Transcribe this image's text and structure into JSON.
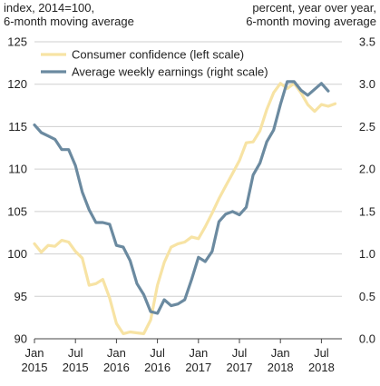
{
  "chart_data": {
    "type": "line",
    "left_axis_note": [
      "index, 2014=100,",
      "6-month moving average"
    ],
    "right_axis_note": [
      "percent, year over year,",
      "6-month moving average"
    ],
    "x_ticks": [
      {
        "month": "Jan",
        "year": "2015",
        "t": 0
      },
      {
        "month": "Jul",
        "year": "2015",
        "t": 6
      },
      {
        "month": "Jan",
        "year": "2016",
        "t": 12
      },
      {
        "month": "Jul",
        "year": "2016",
        "t": 18
      },
      {
        "month": "Jan",
        "year": "2017",
        "t": 24
      },
      {
        "month": "Jul",
        "year": "2017",
        "t": 30
      },
      {
        "month": "Jan",
        "year": "2018",
        "t": 36
      },
      {
        "month": "Jul",
        "year": "2018",
        "t": 42
      }
    ],
    "x_range": [
      0,
      45
    ],
    "y_left": {
      "ticks": [
        "90",
        "95",
        "100",
        "105",
        "110",
        "115",
        "120",
        "125"
      ],
      "range": [
        90,
        125
      ]
    },
    "y_right": {
      "ticks": [
        "0.0",
        "0.5",
        "1.0",
        "1.5",
        "2.0",
        "2.5",
        "3.0",
        "3.5"
      ],
      "range": [
        0,
        3.5
      ]
    },
    "grid": "horizontal",
    "legend_position": "top-left",
    "series": [
      {
        "name": "Consumer confidence (left scale)",
        "axis": "left",
        "color": "#f7e3a4",
        "x": [
          "2015-01",
          "2015-02",
          "2015-03",
          "2015-04",
          "2015-05",
          "2015-06",
          "2015-07",
          "2015-08",
          "2015-09",
          "2015-10",
          "2015-11",
          "2015-12",
          "2016-01",
          "2016-02",
          "2016-03",
          "2016-04",
          "2016-05",
          "2016-06",
          "2016-07",
          "2016-08",
          "2016-09",
          "2016-10",
          "2016-11",
          "2016-12",
          "2017-01",
          "2017-02",
          "2017-03",
          "2017-04",
          "2017-05",
          "2017-06",
          "2017-07",
          "2017-08",
          "2017-09",
          "2017-10",
          "2017-11",
          "2017-12",
          "2018-01",
          "2018-02",
          "2018-03",
          "2018-04",
          "2018-05",
          "2018-06",
          "2018-07",
          "2018-08",
          "2018-09"
        ],
        "values": [
          101.2,
          100.2,
          101.0,
          100.9,
          101.6,
          101.4,
          100.3,
          99.5,
          96.3,
          96.5,
          97.0,
          94.8,
          91.8,
          90.6,
          90.8,
          90.7,
          90.6,
          92.2,
          96.3,
          99.0,
          100.8,
          101.2,
          101.4,
          102.0,
          101.8,
          103.2,
          104.8,
          106.5,
          108.0,
          109.5,
          111.0,
          113.1,
          113.2,
          114.5,
          117.0,
          119.0,
          120.1,
          119.5,
          120.1,
          119.0,
          117.6,
          116.8,
          117.6,
          117.4,
          117.7
        ]
      },
      {
        "name": "Average weekly earnings (right scale)",
        "axis": "right",
        "color": "#6b8aa0",
        "x": [
          "2015-01",
          "2015-02",
          "2015-03",
          "2015-04",
          "2015-05",
          "2015-06",
          "2015-07",
          "2015-08",
          "2015-09",
          "2015-10",
          "2015-11",
          "2015-12",
          "2016-01",
          "2016-02",
          "2016-03",
          "2016-04",
          "2016-05",
          "2016-06",
          "2016-07",
          "2016-08",
          "2016-09",
          "2016-10",
          "2016-11",
          "2016-12",
          "2017-01",
          "2017-02",
          "2017-03",
          "2017-04",
          "2017-05",
          "2017-06",
          "2017-07",
          "2017-08",
          "2017-09",
          "2017-10",
          "2017-11",
          "2017-12",
          "2018-01",
          "2018-02",
          "2018-03",
          "2018-04",
          "2018-05",
          "2018-06",
          "2018-07",
          "2018-08"
        ],
        "values": [
          2.52,
          2.43,
          2.39,
          2.35,
          2.23,
          2.23,
          2.04,
          1.73,
          1.52,
          1.37,
          1.37,
          1.35,
          1.1,
          1.08,
          0.92,
          0.65,
          0.52,
          0.32,
          0.3,
          0.46,
          0.39,
          0.41,
          0.46,
          0.7,
          0.96,
          0.91,
          1.03,
          1.38,
          1.47,
          1.5,
          1.46,
          1.55,
          1.93,
          2.07,
          2.32,
          2.46,
          2.76,
          3.03,
          3.03,
          2.93,
          2.87,
          2.94,
          3.01,
          2.92
        ]
      }
    ]
  }
}
